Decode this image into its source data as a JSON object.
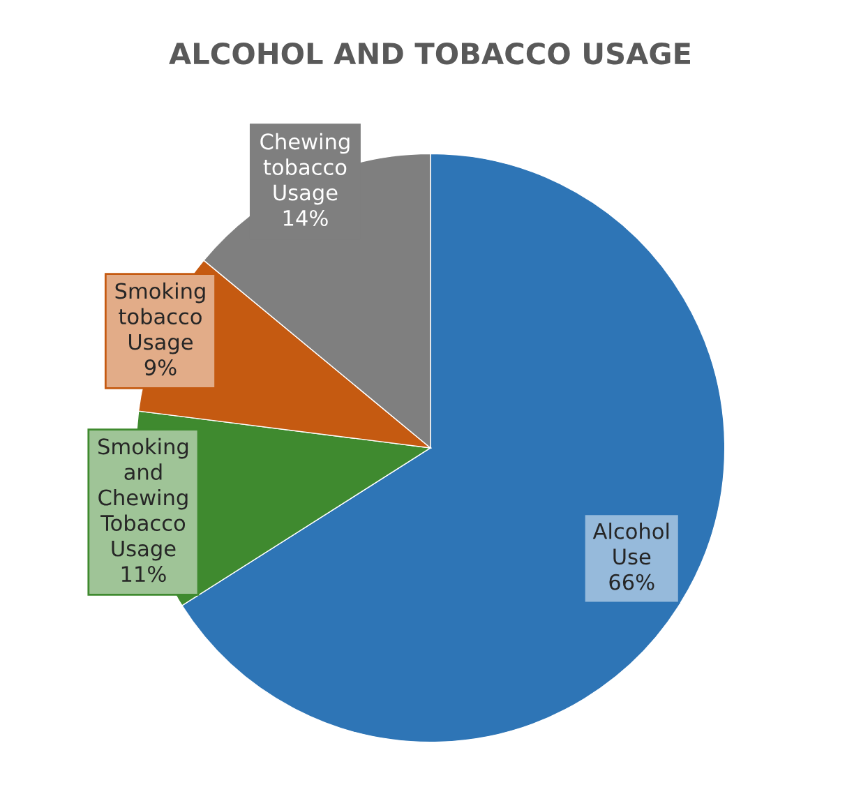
{
  "chart_data": {
    "type": "pie",
    "title": "ALCOHOL AND TOBACCO USAGE",
    "categories": [
      "Alcohol Use",
      "Smoking and Chewing Tobacco Usage",
      "Smoking tobacco Usage",
      "Chewing tobacco Usage"
    ],
    "values": [
      66,
      11,
      9,
      14
    ],
    "value_labels": [
      "66%",
      "11%",
      "9%",
      "14%"
    ],
    "colors": [
      "#2e75b6",
      "#3f8a2f",
      "#c55a11",
      "#7f7f7f"
    ],
    "legend": false
  }
}
